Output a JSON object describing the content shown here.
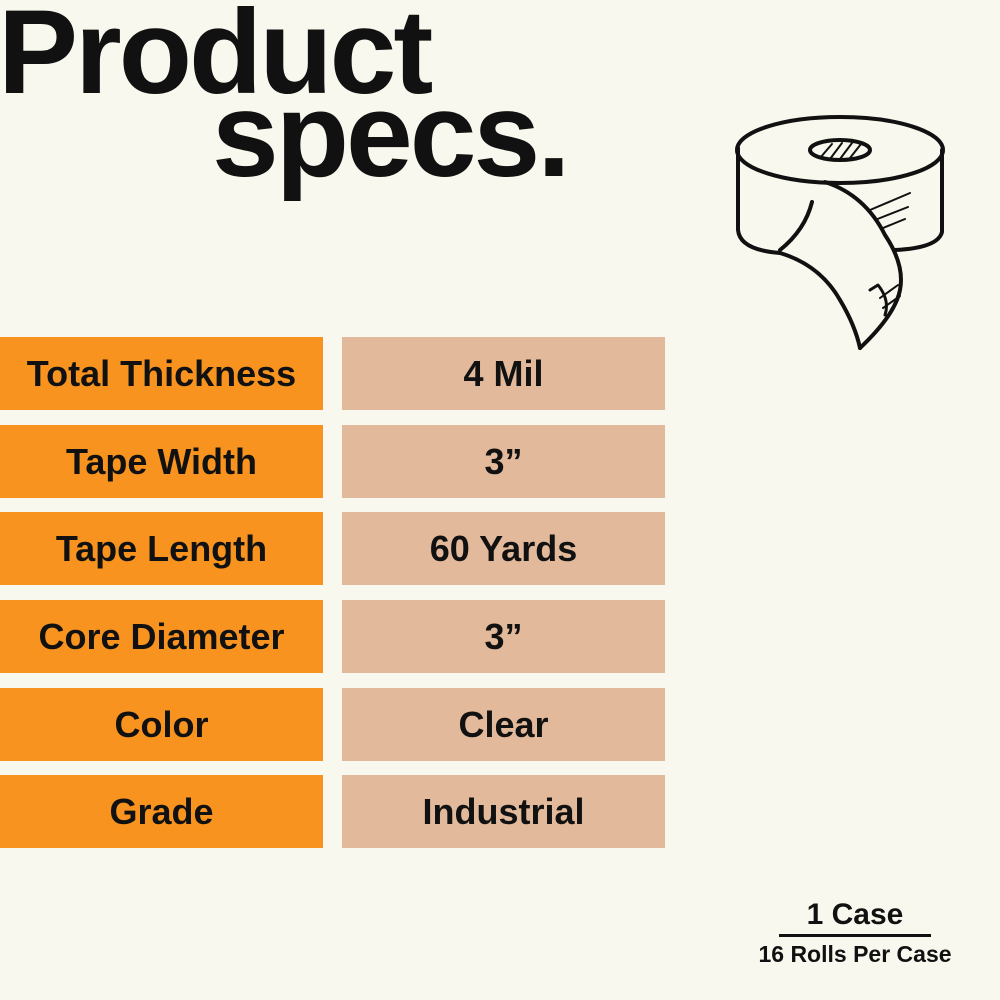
{
  "title": {
    "line1": "Product",
    "line2": "specs."
  },
  "specs": [
    {
      "label": "Total Thickness",
      "value": "4 Mil"
    },
    {
      "label": "Tape Width",
      "value": "3”"
    },
    {
      "label": "Tape Length",
      "value": "60 Yards"
    },
    {
      "label": "Core Diameter",
      "value": "3”"
    },
    {
      "label": "Color",
      "value": "Clear"
    },
    {
      "label": "Grade",
      "value": "Industrial"
    }
  ],
  "packaging": {
    "count": "1 Case",
    "detail": "16 Rolls Per Case"
  },
  "colors": {
    "background": "#f8f8ee",
    "label_bg": "#f7931e",
    "value_bg": "#e2b99a"
  },
  "icon": "tape-roll-icon"
}
